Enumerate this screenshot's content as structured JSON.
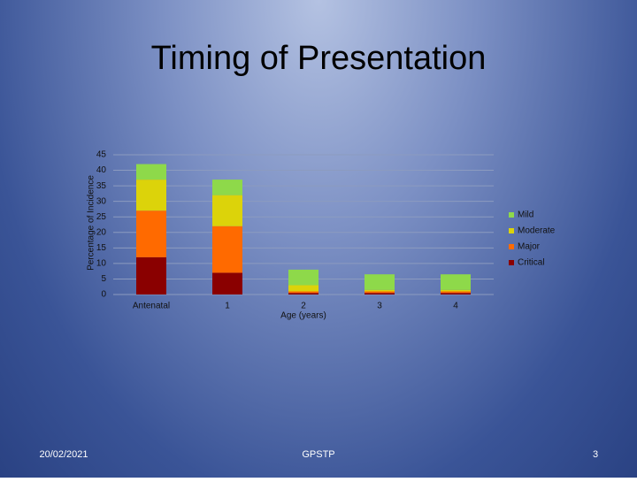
{
  "chart_data": {
    "type": "stacked_bar",
    "title": "Timing of Presentation",
    "y_label": "Percentage of Incidence",
    "x_label": "Age (years)",
    "categories": [
      "Antenatal",
      "1",
      "2",
      "3",
      "4"
    ],
    "series": [
      {
        "name": "Mild",
        "color": "#8ed94a",
        "values": [
          5,
          5,
          5,
          5,
          5
        ]
      },
      {
        "name": "Moderate",
        "color": "#dcd30a",
        "values": [
          10,
          10,
          2,
          0.5,
          0.5
        ]
      },
      {
        "name": "Major",
        "color": "#ff6a00",
        "values": [
          15,
          15,
          0.5,
          0.5,
          0.5
        ]
      },
      {
        "name": "Critical",
        "color": "#8a0000",
        "values": [
          12,
          7,
          0.5,
          0.5,
          0.5
        ]
      }
    ],
    "ylim": [
      0,
      45
    ],
    "yticks": [
      0,
      5,
      10,
      15,
      20,
      25,
      30,
      35,
      40,
      45
    ],
    "grid": true,
    "legend": "right"
  },
  "footer": {
    "date": "20/02/2021",
    "center": "GPSTP",
    "page": "3"
  }
}
